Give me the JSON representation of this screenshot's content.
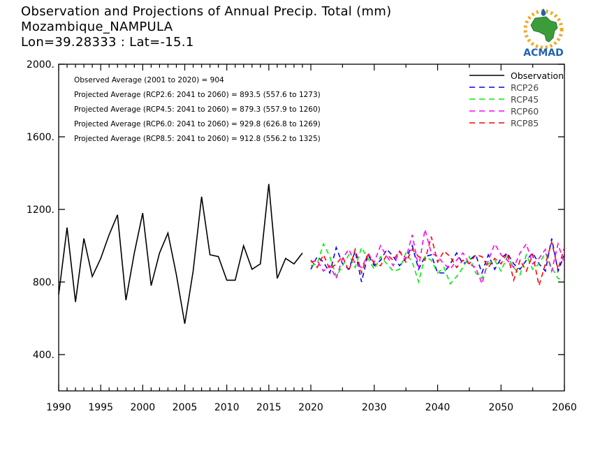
{
  "header": {
    "title": "Observation and Projections of Annual Precip. Total (mm)",
    "subtitle": "Mozambique_NAMPULA",
    "location": "Lon=39.28333 : Lat=-15.1"
  },
  "logo": {
    "text": "ACMAD",
    "icon": "acmad-africa-sun-logo"
  },
  "colors": {
    "observation": "#000000",
    "rcp26": "#0000ff",
    "rcp45": "#00ee00",
    "rcp60": "#ff00ff",
    "rcp85": "#ff0000",
    "logo_blue": "#1f63b0",
    "logo_green": "#3a9d3a",
    "logo_sun": "#f5a623"
  },
  "chart_data": {
    "type": "line",
    "y_ticks": [
      "400.",
      "800.",
      "1200.",
      "1600.",
      "2000."
    ],
    "y_tick_values": [
      400,
      800,
      1200,
      1600,
      2000
    ],
    "ylim": [
      200,
      2000
    ],
    "x_ticks_left": [
      "1990",
      "1995",
      "2000",
      "2005",
      "2010",
      "2015",
      "2020"
    ],
    "x_tick_values_left": [
      1990,
      1995,
      2000,
      2005,
      2010,
      2015,
      2020
    ],
    "x_ticks_right": [
      "2030",
      "2040",
      "2050",
      "2060"
    ],
    "x_tick_values_right": [
      2030,
      2040,
      2050,
      2060
    ],
    "x_segments": [
      [
        1990,
        2020
      ],
      [
        2020,
        2060
      ]
    ],
    "annotations": [
      "Observed Average (2001 to 2020) = 904",
      "Projected Average (RCP2.6: 2041 to 2060) = 893.5 (557.6 to 1273)",
      "Projected Average (RCP4.5: 2041 to 2060) = 879.3 (557.9 to 1260)",
      "Projected Average (RCP6.0: 2041 to 2060) = 929.8 (626.8 to 1269)",
      "Projected Average (RCP8.5: 2041 to 2060) = 912.8 (556.2 to 1325)"
    ],
    "legend_position": "top-right",
    "grid": false,
    "series": [
      {
        "name": "Observation",
        "key": "observation",
        "dashed": false,
        "x": [
          1990,
          1991,
          1992,
          1993,
          1994,
          1995,
          1996,
          1997,
          1998,
          1999,
          2000,
          2001,
          2002,
          2003,
          2004,
          2005,
          2006,
          2007,
          2008,
          2009,
          2010,
          2011,
          2012,
          2013,
          2014,
          2015,
          2016,
          2017,
          2018,
          2019,
          2020
        ],
        "values": [
          730,
          1100,
          690,
          1040,
          830,
          930,
          1060,
          1170,
          700,
          960,
          1180,
          780,
          960,
          1070,
          840,
          570,
          860,
          1270,
          950,
          940,
          810,
          810,
          1000,
          870,
          900,
          1340,
          820,
          930,
          900,
          960,
          null
        ]
      },
      {
        "name": "RCP26",
        "key": "rcp26",
        "dashed": true,
        "x": [
          2020,
          2021,
          2022,
          2023,
          2024,
          2025,
          2026,
          2027,
          2028,
          2029,
          2030,
          2031,
          2032,
          2033,
          2034,
          2035,
          2036,
          2037,
          2038,
          2039,
          2040,
          2041,
          2042,
          2043,
          2044,
          2045,
          2046,
          2047,
          2048,
          2049,
          2050,
          2051,
          2052,
          2053,
          2054,
          2055,
          2056,
          2057,
          2058,
          2059,
          2060
        ],
        "values": [
          870,
          940,
          910,
          850,
          990,
          900,
          870,
          970,
          800,
          950,
          890,
          920,
          980,
          940,
          890,
          930,
          1000,
          870,
          940,
          950,
          850,
          850,
          900,
          960,
          900,
          920,
          950,
          850,
          950,
          870,
          930,
          960,
          900,
          870,
          920,
          960,
          900,
          860,
          1040,
          860,
          950
        ]
      },
      {
        "name": "RCP45",
        "key": "rcp45",
        "dashed": true,
        "x": [
          2020,
          2021,
          2022,
          2023,
          2024,
          2025,
          2026,
          2027,
          2028,
          2029,
          2030,
          2031,
          2032,
          2033,
          2034,
          2035,
          2036,
          2037,
          2038,
          2039,
          2040,
          2041,
          2042,
          2043,
          2044,
          2045,
          2046,
          2047,
          2048,
          2049,
          2050,
          2051,
          2052,
          2053,
          2054,
          2055,
          2056,
          2057,
          2058,
          2059,
          2060
        ],
        "values": [
          890,
          900,
          1010,
          940,
          830,
          890,
          950,
          880,
          990,
          930,
          870,
          940,
          900,
          860,
          870,
          960,
          910,
          800,
          940,
          920,
          850,
          880,
          790,
          830,
          880,
          940,
          850,
          820,
          900,
          920,
          860,
          940,
          880,
          840,
          950,
          870,
          900,
          960,
          880,
          820,
          810
        ]
      },
      {
        "name": "RCP60",
        "key": "rcp60",
        "dashed": true,
        "x": [
          2020,
          2021,
          2022,
          2023,
          2024,
          2025,
          2026,
          2027,
          2028,
          2029,
          2030,
          2031,
          2032,
          2033,
          2034,
          2035,
          2036,
          2037,
          2038,
          2039,
          2040,
          2041,
          2042,
          2043,
          2044,
          2045,
          2046,
          2047,
          2048,
          2049,
          2050,
          2051,
          2052,
          2053,
          2054,
          2055,
          2056,
          2057,
          2058,
          2059,
          2060
        ],
        "values": [
          910,
          920,
          860,
          890,
          820,
          930,
          980,
          900,
          880,
          950,
          910,
          1000,
          940,
          890,
          970,
          930,
          1060,
          880,
          1090,
          960,
          940,
          900,
          870,
          920,
          960,
          900,
          880,
          790,
          920,
          1010,
          950,
          920,
          880,
          960,
          1010,
          900,
          930,
          980,
          860,
          1010,
          900
        ]
      },
      {
        "name": "RCP85",
        "key": "rcp85",
        "dashed": true,
        "x": [
          2020,
          2021,
          2022,
          2023,
          2024,
          2025,
          2026,
          2027,
          2028,
          2029,
          2030,
          2031,
          2032,
          2033,
          2034,
          2035,
          2036,
          2037,
          2038,
          2039,
          2040,
          2041,
          2042,
          2043,
          2044,
          2045,
          2046,
          2047,
          2048,
          2049,
          2050,
          2051,
          2052,
          2053,
          2054,
          2055,
          2056,
          2057,
          2058,
          2059,
          2060
        ],
        "values": [
          920,
          880,
          950,
          870,
          900,
          940,
          860,
          980,
          850,
          960,
          900,
          890,
          950,
          920,
          970,
          910,
          980,
          940,
          920,
          1050,
          910,
          970,
          940,
          880,
          920,
          900,
          950,
          940,
          880,
          930,
          900,
          960,
          810,
          920,
          860,
          950,
          780,
          900,
          1020,
          870,
          990
        ]
      }
    ]
  }
}
